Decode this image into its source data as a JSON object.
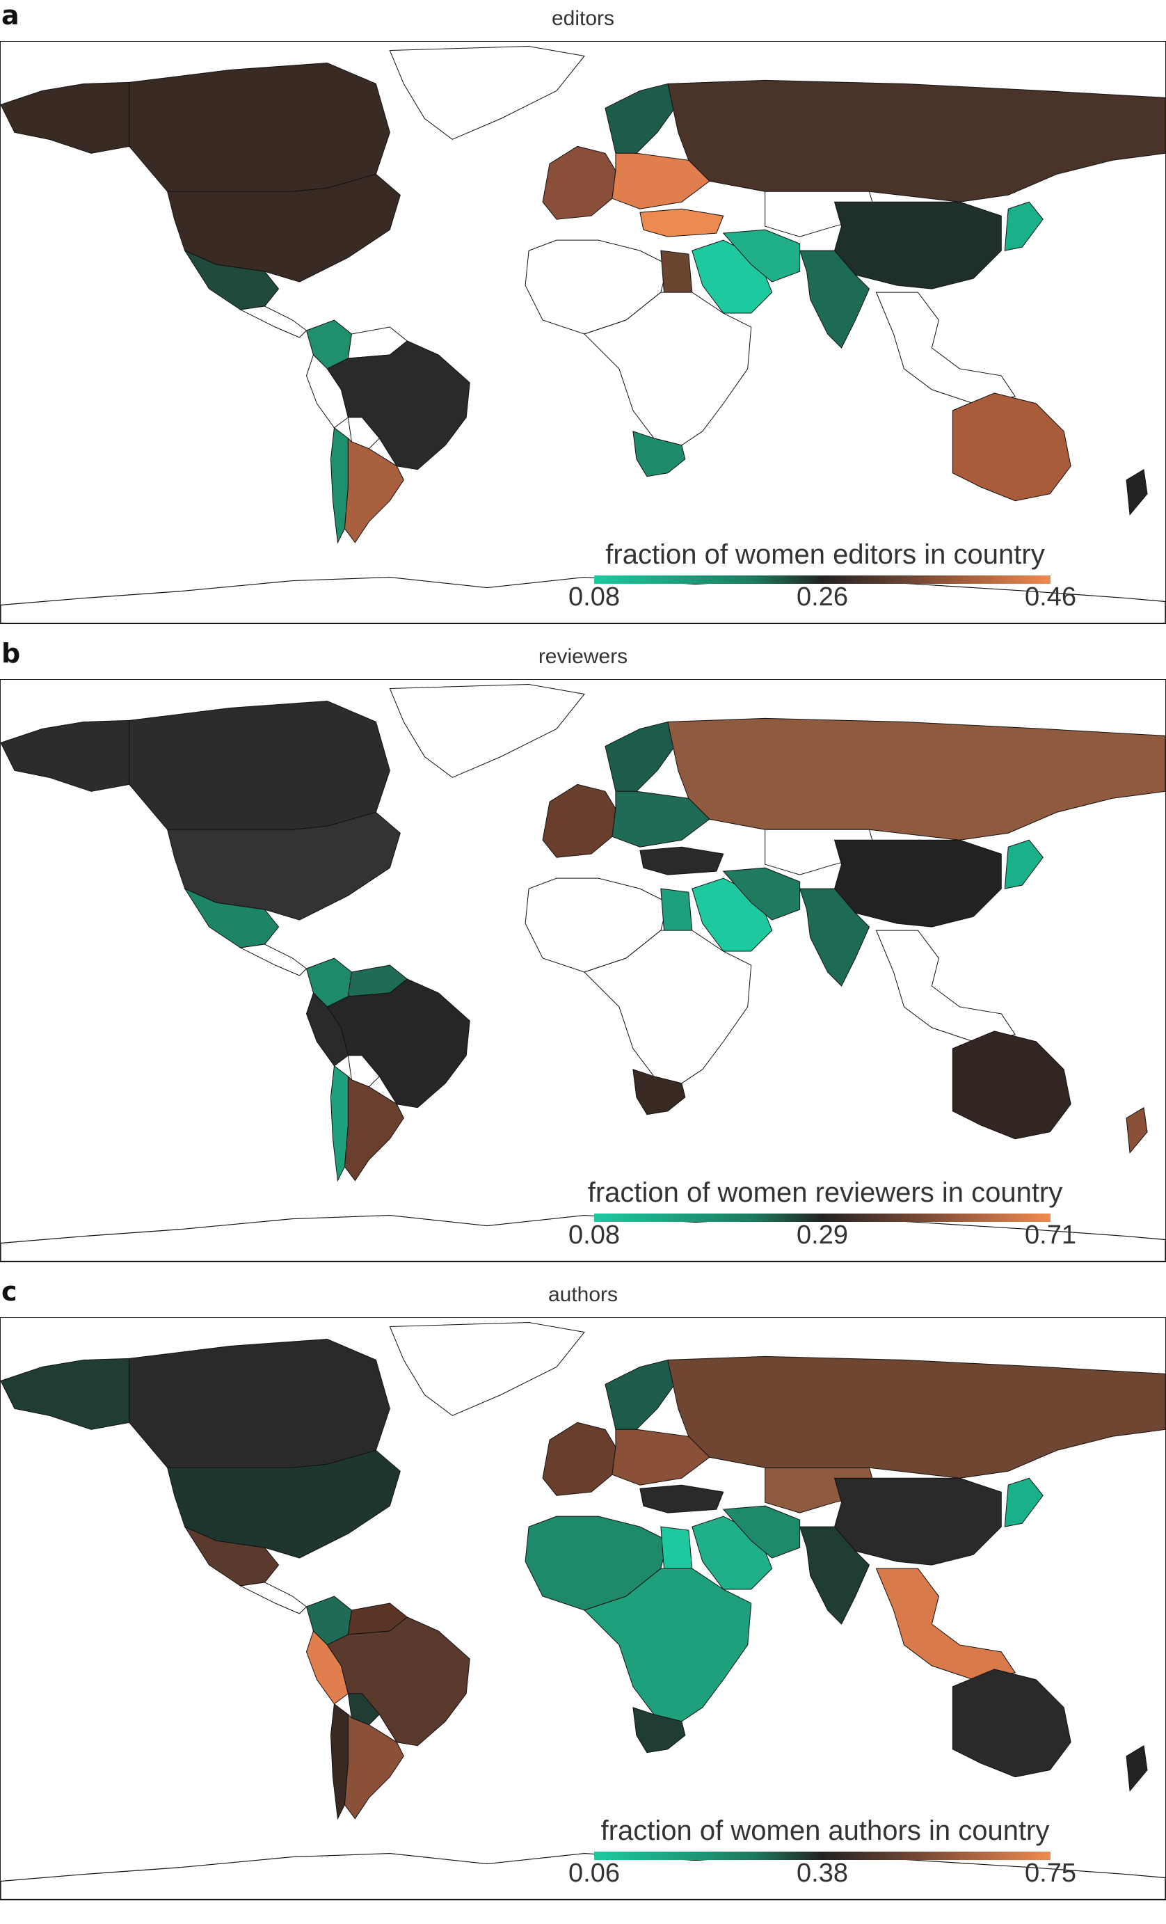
{
  "palette": {
    "low": "#1ec9a0",
    "mid_low": "#1d7a5e",
    "mid": "#222222",
    "mid_high": "#7a4a34",
    "high": "#f08a50",
    "no_data": "#ffffff",
    "border": "#111111"
  },
  "panels": [
    {
      "letter": "a",
      "title": "editors",
      "legend": {
        "title": "fraction of women editors in country",
        "ticks": [
          "0.08",
          "0.26",
          "0.46"
        ]
      },
      "colors": {
        "north_america": "#3a2a24",
        "greenland": "#ffffff",
        "alaska": "#3a2a24",
        "usa": "#3a2a24",
        "mexico": "#1f4a3d",
        "central_america": "#ffffff",
        "colombia": "#1f8f6e",
        "venezuela": "#ffffff",
        "peru": "#ffffff",
        "brazil": "#2a2a2a",
        "bolivia": "#ffffff",
        "chile": "#1f8f6e",
        "argentina": "#a8603e",
        "russia": "#4a3328",
        "scandinavia": "#1d5c4b",
        "western_europe": "#8a4f38",
        "eastern_europe": "#e07f4d",
        "turkey": "#ec8a52",
        "middle_east": "#1ec9a0",
        "iran": "#1fb08a",
        "egypt": "#6b4530",
        "north_africa": "#ffffff",
        "sub_saharan": "#ffffff",
        "south_africa": "#1e8c6c",
        "central_asia": "#ffffff",
        "china": "#1f2f2b",
        "india": "#1d6b55",
        "southeast_asia": "#ffffff",
        "japan": "#1ab08a",
        "australia": "#a85c3a",
        "new_zealand": "#222222"
      }
    },
    {
      "letter": "b",
      "title": "reviewers",
      "legend": {
        "title": "fraction of women reviewers in country",
        "ticks": [
          "0.08",
          "0.29",
          "0.71"
        ]
      },
      "colors": {
        "north_america": "#2c2c2c",
        "greenland": "#ffffff",
        "alaska": "#2c2c2c",
        "usa": "#333333",
        "mexico": "#1e8466",
        "central_america": "#ffffff",
        "colombia": "#1f8a6b",
        "venezuela": "#1f6b55",
        "peru": "#2a2a2a",
        "brazil": "#262626",
        "bolivia": "#ffffff",
        "chile": "#1fa07c",
        "argentina": "#6a3f2e",
        "russia": "#8f5a3e",
        "scandinavia": "#1d5c4b",
        "western_europe": "#6a3e2c",
        "eastern_europe": "#1f6b55",
        "turkey": "#2a2a2a",
        "middle_east": "#1ec9a0",
        "iran": "#1f7a60",
        "egypt": "#1fa07c",
        "north_africa": "#ffffff",
        "sub_saharan": "#ffffff",
        "south_africa": "#3a2a24",
        "central_asia": "#ffffff",
        "china": "#222222",
        "india": "#1d6b55",
        "southeast_asia": "#ffffff",
        "japan": "#1ab08a",
        "australia": "#332622",
        "new_zealand": "#8a5038"
      }
    },
    {
      "letter": "c",
      "title": "authors",
      "legend": {
        "title": "fraction of women authors in country",
        "ticks": [
          "0.06",
          "0.38",
          "0.75"
        ]
      },
      "colors": {
        "north_america": "#2a2a2a",
        "greenland": "#ffffff",
        "alaska": "#1f3d35",
        "usa": "#1f3530",
        "mexico": "#5a3a2c",
        "central_america": "#ffffff",
        "colombia": "#1f6b55",
        "venezuela": "#5a3526",
        "peru": "#e07f4d",
        "brazil": "#5a3a2c",
        "bolivia": "#1f3d35",
        "chile": "#3a2a24",
        "argentina": "#8a5038",
        "russia": "#6e4632",
        "scandinavia": "#1d5c4b",
        "western_europe": "#6a3e2c",
        "eastern_europe": "#8a5038",
        "turkey": "#2a2a2a",
        "middle_east": "#1fb08a",
        "iran": "#1f8a6b",
        "egypt": "#1ec9a0",
        "north_africa": "#1f8a6b",
        "sub_saharan": "#1fa07c",
        "south_africa": "#1f3d35",
        "central_asia": "#8f5a3e",
        "china": "#2a2a2a",
        "india": "#1f3d35",
        "southeast_asia": "#d97a4a",
        "japan": "#1ab08a",
        "australia": "#2a2a2a",
        "new_zealand": "#222222"
      }
    }
  ]
}
